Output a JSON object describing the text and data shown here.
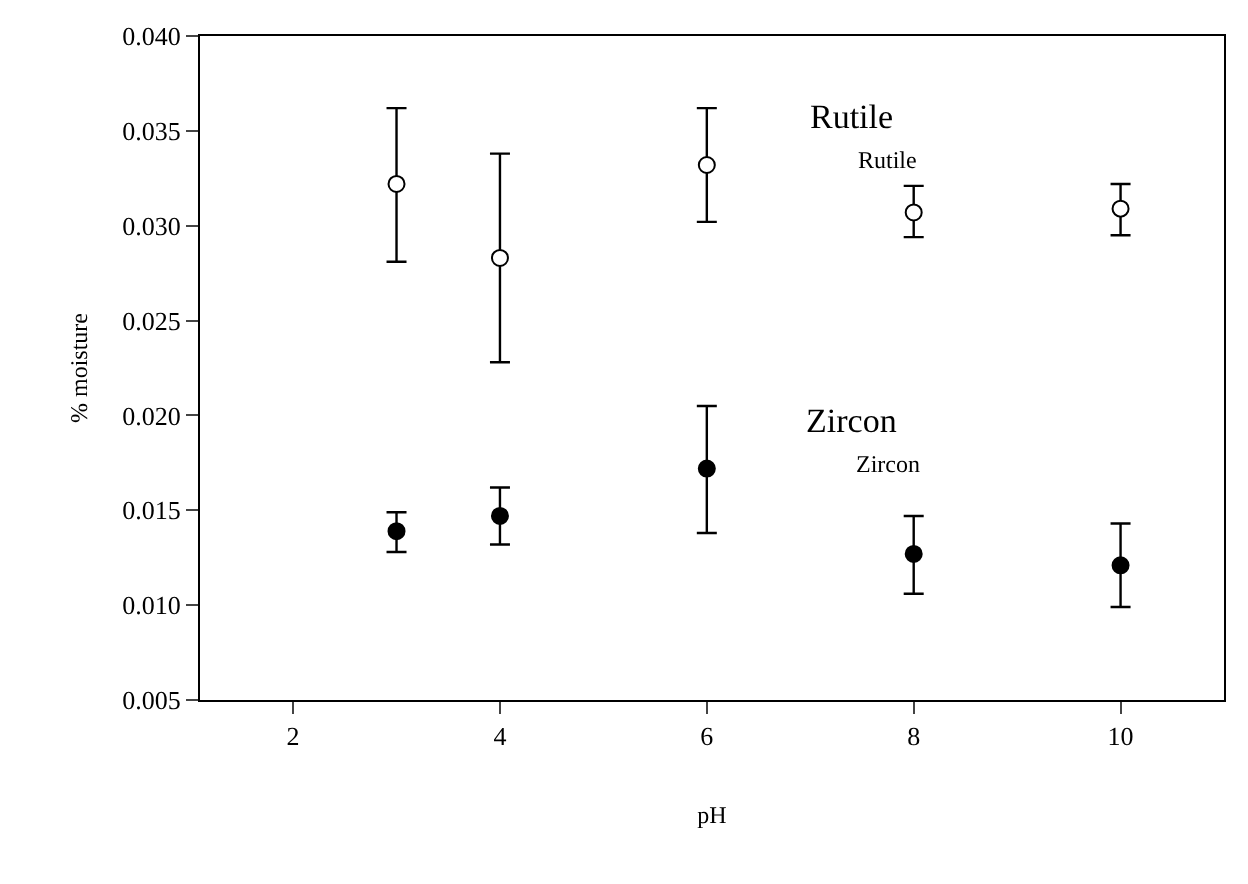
{
  "chart_data": {
    "type": "scatter",
    "xlabel": "pH",
    "ylabel": "% moisture",
    "xlim": [
      1.1,
      11
    ],
    "xticks": [
      2,
      4,
      6,
      8,
      10
    ],
    "ylim": [
      0.005,
      0.04
    ],
    "yticks": [
      {
        "value": 0.005,
        "label": "0.005"
      },
      {
        "value": 0.01,
        "label": "0.010"
      },
      {
        "value": 0.015,
        "label": "0.015"
      },
      {
        "value": 0.02,
        "label": "0.020"
      },
      {
        "value": 0.025,
        "label": "0.025"
      },
      {
        "value": 0.03,
        "label": "0.030"
      },
      {
        "value": 0.035,
        "label": "0.035"
      },
      {
        "value": 0.04,
        "label": "0.040"
      }
    ],
    "x": [
      3,
      4,
      6,
      8,
      10
    ],
    "grid": false,
    "legend": false,
    "marker": "circle",
    "series": [
      {
        "name": "Rutile",
        "color": "#ffffff",
        "values": [
          0.0322,
          0.0283,
          0.0332,
          0.0307,
          0.0309
        ],
        "errors": [
          [
            0.0281,
            0.0362
          ],
          [
            0.0228,
            0.0338
          ],
          [
            0.0302,
            0.0362
          ],
          [
            0.0294,
            0.0321
          ],
          [
            0.0295,
            0.0322
          ]
        ]
      },
      {
        "name": "Zircon",
        "color": "#000000",
        "values": [
          0.0139,
          0.0147,
          0.0172,
          0.0127,
          0.0121
        ],
        "errors": [
          [
            0.0128,
            0.0149
          ],
          [
            0.0132,
            0.0162
          ],
          [
            0.0138,
            0.0205
          ],
          [
            0.0106,
            0.0147
          ],
          [
            0.0099,
            0.0143
          ]
        ]
      }
    ],
    "annotations": [
      "Rutile",
      "Zircon"
    ]
  }
}
